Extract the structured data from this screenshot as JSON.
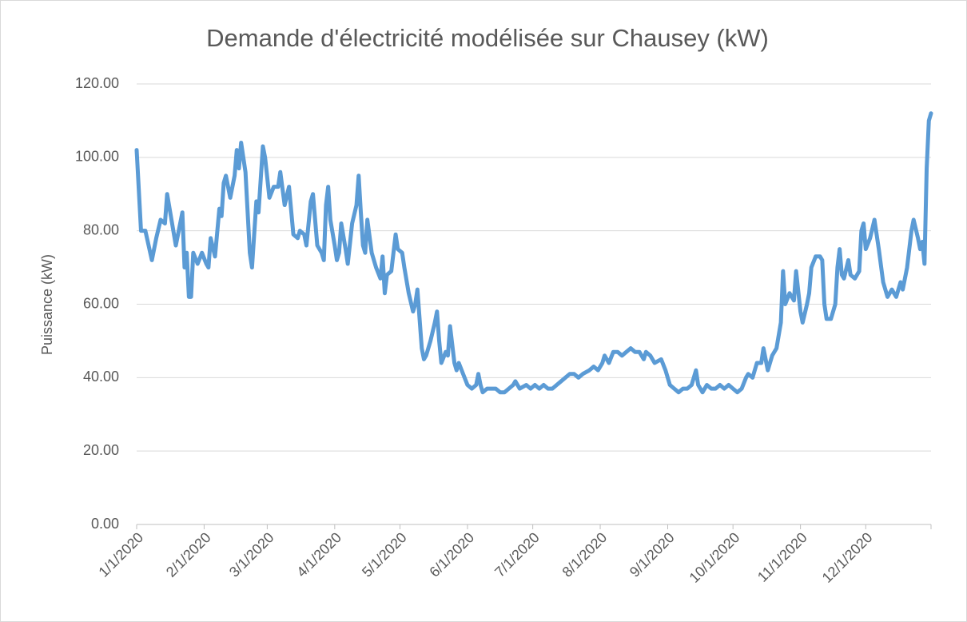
{
  "chart_data": {
    "type": "line",
    "title": "Demande d'électricité modélisée sur Chausey (kW)",
    "y_label": "Puissance (kW)",
    "ylim": [
      0,
      120
    ],
    "yticks": [
      {
        "value": 0,
        "label": "0.00"
      },
      {
        "value": 20,
        "label": "20.00"
      },
      {
        "value": 40,
        "label": "40.00"
      },
      {
        "value": 60,
        "label": "60.00"
      },
      {
        "value": 80,
        "label": "80.00"
      },
      {
        "value": 100,
        "label": "100.00"
      },
      {
        "value": 120,
        "label": "120.00"
      }
    ],
    "xlim": [
      "1/1/2020",
      "12/31/2020"
    ],
    "xticks": [
      "1/1/2020",
      "2/1/2020",
      "3/1/2020",
      "4/1/2020",
      "5/1/2020",
      "6/1/2020",
      "7/1/2020",
      "8/1/2020",
      "9/1/2020",
      "10/1/2020",
      "11/1/2020",
      "12/1/2020"
    ],
    "grid": true,
    "series": [
      {
        "name": "Puissance",
        "color": "#5b9bd5",
        "x": [
          "1/1/2020",
          "1/3/2020",
          "1/5/2020",
          "1/8/2020",
          "1/10/2020",
          "1/12/2020",
          "1/14/2020",
          "1/15/2020",
          "1/17/2020",
          "1/19/2020",
          "1/21/2020",
          "1/22/2020",
          "1/23/2020",
          "1/24/2020",
          "1/25/2020",
          "1/26/2020",
          "1/27/2020",
          "1/29/2020",
          "1/31/2020",
          "2/2/2020",
          "2/3/2020",
          "2/4/2020",
          "2/6/2020",
          "2/8/2020",
          "2/9/2020",
          "2/10/2020",
          "2/11/2020",
          "2/13/2020",
          "2/15/2020",
          "2/16/2020",
          "2/17/2020",
          "2/18/2020",
          "2/20/2020",
          "2/22/2020",
          "2/23/2020",
          "2/25/2020",
          "2/26/2020",
          "2/28/2020",
          "2/29/2020",
          "3/2/2020",
          "3/4/2020",
          "3/6/2020",
          "3/7/2020",
          "3/9/2020",
          "3/11/2020",
          "3/13/2020",
          "3/15/2020",
          "3/16/2020",
          "3/18/2020",
          "3/19/2020",
          "3/21/2020",
          "3/22/2020",
          "3/24/2020",
          "3/26/2020",
          "3/27/2020",
          "3/28/2020",
          "3/29/2020",
          "3/30/2020",
          "4/1/2020",
          "4/2/2020",
          "4/3/2020",
          "4/4/2020",
          "4/6/2020",
          "4/7/2020",
          "4/9/2020",
          "4/11/2020",
          "4/12/2020",
          "4/13/2020",
          "4/14/2020",
          "4/15/2020",
          "4/16/2020",
          "4/18/2020",
          "4/20/2020",
          "4/22/2020",
          "4/23/2020",
          "4/24/2020",
          "4/25/2020",
          "4/27/2020",
          "4/29/2020",
          "4/30/2020",
          "5/2/2020",
          "5/3/2020",
          "5/5/2020",
          "5/7/2020",
          "5/8/2020",
          "5/9/2020",
          "5/11/2020",
          "5/12/2020",
          "5/13/2020",
          "5/15/2020",
          "5/17/2020",
          "5/18/2020",
          "5/19/2020",
          "5/20/2020",
          "5/22/2020",
          "5/23/2020",
          "5/24/2020",
          "5/26/2020",
          "5/27/2020",
          "5/28/2020",
          "5/30/2020",
          "6/1/2020",
          "6/3/2020",
          "6/5/2020",
          "6/6/2020",
          "6/7/2020",
          "6/8/2020",
          "6/10/2020",
          "6/12/2020",
          "6/14/2020",
          "6/16/2020",
          "6/18/2020",
          "6/20/2020",
          "6/22/2020",
          "6/23/2020",
          "6/25/2020",
          "6/28/2020",
          "6/30/2020",
          "7/2/2020",
          "7/4/2020",
          "7/6/2020",
          "7/8/2020",
          "7/10/2020",
          "7/12/2020",
          "7/14/2020",
          "7/16/2020",
          "7/18/2020",
          "7/20/2020",
          "7/22/2020",
          "7/24/2020",
          "7/27/2020",
          "7/29/2020",
          "7/31/2020",
          "8/2/2020",
          "8/3/2020",
          "8/5/2020",
          "8/7/2020",
          "8/9/2020",
          "8/11/2020",
          "8/13/2020",
          "8/15/2020",
          "8/17/2020",
          "8/19/2020",
          "8/21/2020",
          "8/22/2020",
          "8/24/2020",
          "8/26/2020",
          "8/29/2020",
          "8/31/2020",
          "9/2/2020",
          "9/4/2020",
          "9/6/2020",
          "9/8/2020",
          "9/10/2020",
          "9/12/2020",
          "9/14/2020",
          "9/15/2020",
          "9/17/2020",
          "9/19/2020",
          "9/21/2020",
          "9/23/2020",
          "9/25/2020",
          "9/27/2020",
          "9/29/2020",
          "10/1/2020",
          "10/3/2020",
          "10/5/2020",
          "10/7/2020",
          "10/8/2020",
          "10/10/2020",
          "10/12/2020",
          "10/14/2020",
          "10/15/2020",
          "10/17/2020",
          "10/19/2020",
          "10/21/2020",
          "10/23/2020",
          "10/24/2020",
          "10/25/2020",
          "10/27/2020",
          "10/29/2020",
          "10/30/2020",
          "11/1/2020",
          "11/2/2020",
          "11/4/2020",
          "11/5/2020",
          "11/6/2020",
          "11/8/2020",
          "11/10/2020",
          "11/11/2020",
          "11/12/2020",
          "11/13/2020",
          "11/15/2020",
          "11/17/2020",
          "11/18/2020",
          "11/19/2020",
          "11/20/2020",
          "11/21/2020",
          "11/23/2020",
          "11/24/2020",
          "11/26/2020",
          "11/28/2020",
          "11/29/2020",
          "11/30/2020",
          "12/1/2020",
          "12/3/2020",
          "12/5/2020",
          "12/7/2020",
          "12/9/2020",
          "12/11/2020",
          "12/13/2020",
          "12/15/2020",
          "12/17/2020",
          "12/18/2020",
          "12/20/2020",
          "12/22/2020",
          "12/23/2020",
          "12/25/2020",
          "12/26/2020",
          "12/27/2020",
          "12/28/2020",
          "12/29/2020",
          "12/30/2020",
          "12/31/2020"
        ],
        "values": [
          102,
          80,
          80,
          72,
          78,
          83,
          82,
          90,
          83,
          76,
          82,
          85,
          70,
          74,
          62,
          62,
          74,
          71,
          74,
          71,
          70,
          78,
          73,
          86,
          84,
          93,
          95,
          89,
          95,
          102,
          97,
          104,
          96,
          74,
          70,
          88,
          85,
          103,
          100,
          89,
          92,
          92,
          96,
          87,
          92,
          79,
          78,
          80,
          79,
          76,
          88,
          90,
          76,
          74,
          72,
          87,
          92,
          83,
          76,
          72,
          74,
          82,
          75,
          71,
          82,
          87,
          95,
          85,
          76,
          74,
          83,
          74,
          70,
          67,
          73,
          63,
          68,
          69,
          79,
          75,
          74,
          70,
          63,
          58,
          60,
          64,
          48,
          45,
          46,
          50,
          55,
          58,
          50,
          44,
          47,
          46,
          54,
          44,
          42,
          44,
          41,
          38,
          37,
          38,
          41,
          38,
          36,
          37,
          37,
          37,
          36,
          36,
          37,
          38,
          39,
          37,
          38,
          37,
          38,
          37,
          38,
          37,
          37,
          38,
          39,
          40,
          41,
          41,
          40,
          41,
          42,
          43,
          42,
          44,
          46,
          44,
          47,
          47,
          46,
          47,
          48,
          47,
          47,
          45,
          47,
          46,
          44,
          45,
          42,
          38,
          37,
          36,
          37,
          37,
          38,
          42,
          38,
          36,
          38,
          37,
          37,
          38,
          37,
          38,
          37,
          36,
          37,
          40,
          41,
          40,
          44,
          44,
          48,
          42,
          46,
          48,
          55,
          69,
          60,
          63,
          61,
          69,
          58,
          55,
          60,
          63,
          70,
          73,
          73,
          72,
          60,
          56,
          56,
          60,
          70,
          75,
          68,
          67,
          72,
          68,
          67,
          69,
          80,
          82,
          75,
          78,
          83,
          75,
          66,
          62,
          64,
          62,
          66,
          64,
          70,
          80,
          83,
          78,
          75,
          77,
          71,
          97,
          110,
          112
        ]
      }
    ]
  }
}
